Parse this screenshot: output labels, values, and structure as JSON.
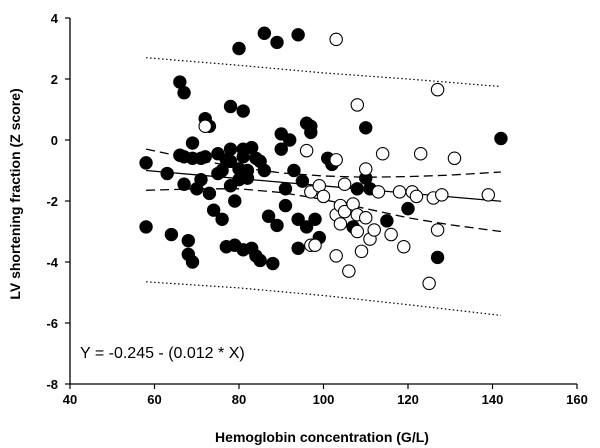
{
  "chart_data": {
    "type": "scatter",
    "title": "",
    "xlabel": "Hemoglobin concentration (G/L)",
    "ylabel": "LV shortening fraction (Z score)",
    "xlim": [
      40,
      160
    ],
    "ylim": [
      -8,
      4
    ],
    "xticks": [
      "40",
      "60",
      "80",
      "100",
      "120",
      "140",
      "160"
    ],
    "yticks": [
      "4",
      "2",
      "0",
      "-2",
      "-4",
      "-6",
      "-8"
    ],
    "grid": false,
    "annotation": "Y = -0.245  - (0.012 * X)",
    "regression": {
      "intercept": -0.245,
      "slope": -0.012,
      "x_range": [
        58,
        142
      ]
    },
    "confidence_band": {
      "upper": [
        [
          58,
          -0.3
        ],
        [
          70,
          -0.65
        ],
        [
          80,
          -0.9
        ],
        [
          90,
          -1.08
        ],
        [
          100,
          -1.18
        ],
        [
          110,
          -1.22
        ],
        [
          120,
          -1.2
        ],
        [
          130,
          -1.15
        ],
        [
          142,
          -1.05
        ]
      ],
      "lower": [
        [
          58,
          -1.65
        ],
        [
          70,
          -1.6
        ],
        [
          80,
          -1.6
        ],
        [
          90,
          -1.72
        ],
        [
          100,
          -1.95
        ],
        [
          110,
          -2.25
        ],
        [
          120,
          -2.55
        ],
        [
          130,
          -2.78
        ],
        [
          142,
          -3.0
        ]
      ]
    },
    "prediction_band": {
      "upper": [
        [
          58,
          2.7
        ],
        [
          80,
          2.45
        ],
        [
          100,
          2.2
        ],
        [
          120,
          2.0
        ],
        [
          142,
          1.75
        ]
      ],
      "lower": [
        [
          58,
          -4.65
        ],
        [
          80,
          -4.85
        ],
        [
          100,
          -5.1
        ],
        [
          120,
          -5.4
        ],
        [
          142,
          -5.75
        ]
      ]
    },
    "colors": {
      "filled_marker": "#000000",
      "open_marker_fill": "#ffffff",
      "axis": "#000000"
    },
    "series": [
      {
        "marker": "filled",
        "points": [
          [
            58,
            -0.75
          ],
          [
            58,
            -2.85
          ],
          [
            63,
            -1.1
          ],
          [
            64,
            -3.1
          ],
          [
            66,
            -0.5
          ],
          [
            66,
            1.9
          ],
          [
            67,
            1.55
          ],
          [
            67,
            -1.45
          ],
          [
            67,
            -0.55
          ],
          [
            68,
            -3.3
          ],
          [
            68,
            -3.75
          ],
          [
            69,
            -4.0
          ],
          [
            69,
            -0.1
          ],
          [
            69,
            -0.6
          ],
          [
            70,
            -1.6
          ],
          [
            71,
            -1.3
          ],
          [
            71,
            -0.6
          ],
          [
            72,
            0.7
          ],
          [
            72,
            -0.55
          ],
          [
            73,
            -1.75
          ],
          [
            73,
            0.45
          ],
          [
            74,
            -2.3
          ],
          [
            75,
            -0.45
          ],
          [
            75,
            -1.1
          ],
          [
            76,
            -1.0
          ],
          [
            76,
            -2.6
          ],
          [
            77,
            -0.65
          ],
          [
            77,
            -3.5
          ],
          [
            78,
            -0.3
          ],
          [
            78,
            -0.7
          ],
          [
            78,
            1.1
          ],
          [
            78,
            -1.5
          ],
          [
            79,
            -2.0
          ],
          [
            79,
            -3.45
          ],
          [
            80,
            3.0
          ],
          [
            80,
            -0.95
          ],
          [
            80,
            -1.3
          ],
          [
            81,
            -0.3
          ],
          [
            81,
            -0.55
          ],
          [
            81,
            -3.6
          ],
          [
            81,
            0.95
          ],
          [
            82,
            -1.0
          ],
          [
            82,
            -1.25
          ],
          [
            83,
            -3.55
          ],
          [
            83,
            -0.25
          ],
          [
            84,
            -0.6
          ],
          [
            84,
            -3.8
          ],
          [
            85,
            -0.7
          ],
          [
            85,
            -3.95
          ],
          [
            86,
            -1.0
          ],
          [
            86,
            3.5
          ],
          [
            87,
            -2.5
          ],
          [
            88,
            -4.05
          ],
          [
            89,
            -2.8
          ],
          [
            89,
            3.2
          ],
          [
            90,
            -0.3
          ],
          [
            90,
            0.2
          ],
          [
            91,
            -1.6
          ],
          [
            91,
            -2.15
          ],
          [
            92,
            0.0
          ],
          [
            93,
            -1.0
          ],
          [
            94,
            3.45
          ],
          [
            94,
            -2.6
          ],
          [
            94,
            -3.55
          ],
          [
            95,
            -1.35
          ],
          [
            96,
            0.55
          ],
          [
            96,
            -2.85
          ],
          [
            97,
            0.25
          ],
          [
            97,
            0.45
          ],
          [
            98,
            -2.6
          ],
          [
            99,
            -3.2
          ],
          [
            101,
            -0.6
          ],
          [
            102,
            -0.8
          ],
          [
            107,
            -2.85
          ],
          [
            108,
            -1.6
          ],
          [
            110,
            -1.25
          ],
          [
            110,
            0.4
          ],
          [
            111,
            -1.6
          ],
          [
            115,
            -2.65
          ],
          [
            120,
            -2.25
          ],
          [
            127,
            -3.85
          ],
          [
            142,
            0.05
          ]
        ]
      },
      {
        "marker": "open",
        "points": [
          [
            72,
            0.45
          ],
          [
            96,
            -0.35
          ],
          [
            97,
            -1.7
          ],
          [
            97,
            -3.45
          ],
          [
            98,
            -3.45
          ],
          [
            99,
            -1.5
          ],
          [
            100,
            -1.85
          ],
          [
            103,
            3.3
          ],
          [
            103,
            -0.65
          ],
          [
            103,
            -2.45
          ],
          [
            103,
            -3.8
          ],
          [
            104,
            -2.75
          ],
          [
            104,
            -2.15
          ],
          [
            105,
            -2.35
          ],
          [
            105,
            -1.45
          ],
          [
            106,
            -4.3
          ],
          [
            107,
            -2.1
          ],
          [
            108,
            1.15
          ],
          [
            108,
            -3.0
          ],
          [
            108,
            -2.45
          ],
          [
            109,
            -3.65
          ],
          [
            110,
            -2.55
          ],
          [
            110,
            -0.95
          ],
          [
            111,
            -3.25
          ],
          [
            112,
            -2.95
          ],
          [
            113,
            -1.7
          ],
          [
            114,
            -0.45
          ],
          [
            116,
            -3.1
          ],
          [
            118,
            -1.7
          ],
          [
            119,
            -3.5
          ],
          [
            121,
            -1.7
          ],
          [
            122,
            -1.85
          ],
          [
            123,
            -0.45
          ],
          [
            125,
            -4.7
          ],
          [
            126,
            -1.9
          ],
          [
            127,
            1.65
          ],
          [
            127,
            -2.95
          ],
          [
            128,
            -1.8
          ],
          [
            131,
            -0.6
          ],
          [
            139,
            -1.8
          ]
        ]
      }
    ]
  }
}
